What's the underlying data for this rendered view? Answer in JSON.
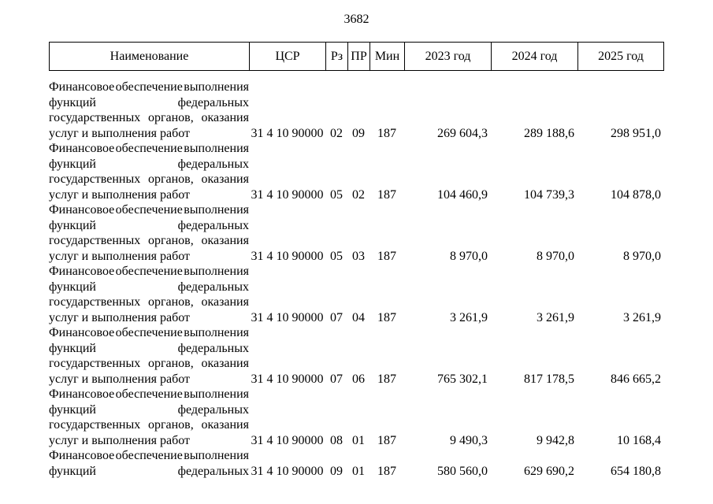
{
  "page": {
    "number": "3682"
  },
  "table": {
    "headers": [
      "Наименование",
      "ЦСР",
      "Рз",
      "ПР",
      "Мин",
      "2023 год",
      "2024 год",
      "2025 год"
    ],
    "rows": [
      {
        "name_lines": [
          {
            "text": "Финансовое обеспечение выполнения",
            "justify": true
          },
          {
            "text": "функций федеральных",
            "justify": true
          },
          {
            "text": "государственных органов, оказания",
            "justify": true
          },
          {
            "text": "услуг и выполнения работ",
            "justify": false
          }
        ],
        "csr": "31 4 10 90000",
        "rz": "02",
        "pr": "09",
        "min": "187",
        "y2023": "269 604,3",
        "y2024": "289 188,6",
        "y2025": "298 951,0"
      },
      {
        "name_lines": [
          {
            "text": "Финансовое обеспечение выполнения",
            "justify": true
          },
          {
            "text": "функций федеральных",
            "justify": true
          },
          {
            "text": "государственных органов, оказания",
            "justify": true
          },
          {
            "text": "услуг и выполнения работ",
            "justify": false
          }
        ],
        "csr": "31 4 10 90000",
        "rz": "05",
        "pr": "02",
        "min": "187",
        "y2023": "104 460,9",
        "y2024": "104 739,3",
        "y2025": "104 878,0"
      },
      {
        "name_lines": [
          {
            "text": "Финансовое обеспечение выполнения",
            "justify": true
          },
          {
            "text": "функций федеральных",
            "justify": true
          },
          {
            "text": "государственных органов, оказания",
            "justify": true
          },
          {
            "text": "услуг и выполнения работ",
            "justify": false
          }
        ],
        "csr": "31 4 10 90000",
        "rz": "05",
        "pr": "03",
        "min": "187",
        "y2023": "8 970,0",
        "y2024": "8 970,0",
        "y2025": "8 970,0"
      },
      {
        "name_lines": [
          {
            "text": "Финансовое обеспечение выполнения",
            "justify": true
          },
          {
            "text": "функций федеральных",
            "justify": true
          },
          {
            "text": "государственных органов, оказания",
            "justify": true
          },
          {
            "text": "услуг и выполнения работ",
            "justify": false
          }
        ],
        "csr": "31 4 10 90000",
        "rz": "07",
        "pr": "04",
        "min": "187",
        "y2023": "3 261,9",
        "y2024": "3 261,9",
        "y2025": "3 261,9"
      },
      {
        "name_lines": [
          {
            "text": "Финансовое обеспечение выполнения",
            "justify": true
          },
          {
            "text": "функций федеральных",
            "justify": true
          },
          {
            "text": "государственных органов, оказания",
            "justify": true
          },
          {
            "text": "услуг и выполнения работ",
            "justify": false
          }
        ],
        "csr": "31 4 10 90000",
        "rz": "07",
        "pr": "06",
        "min": "187",
        "y2023": "765 302,1",
        "y2024": "817 178,5",
        "y2025": "846 665,2"
      },
      {
        "name_lines": [
          {
            "text": "Финансовое обеспечение выполнения",
            "justify": true
          },
          {
            "text": "функций федеральных",
            "justify": true
          },
          {
            "text": "государственных органов, оказания",
            "justify": true
          },
          {
            "text": "услуг и выполнения работ",
            "justify": false
          }
        ],
        "csr": "31 4 10 90000",
        "rz": "08",
        "pr": "01",
        "min": "187",
        "y2023": "9 490,3",
        "y2024": "9 942,8",
        "y2025": "10 168,4"
      },
      {
        "name_lines": [
          {
            "text": "Финансовое обеспечение выполнения",
            "justify": true
          },
          {
            "text": "функций федеральных",
            "justify": true
          }
        ],
        "csr": "31 4 10 90000",
        "rz": "09",
        "pr": "01",
        "min": "187",
        "y2023": "580 560,0",
        "y2024": "629 690,2",
        "y2025": "654 180,8"
      }
    ]
  }
}
